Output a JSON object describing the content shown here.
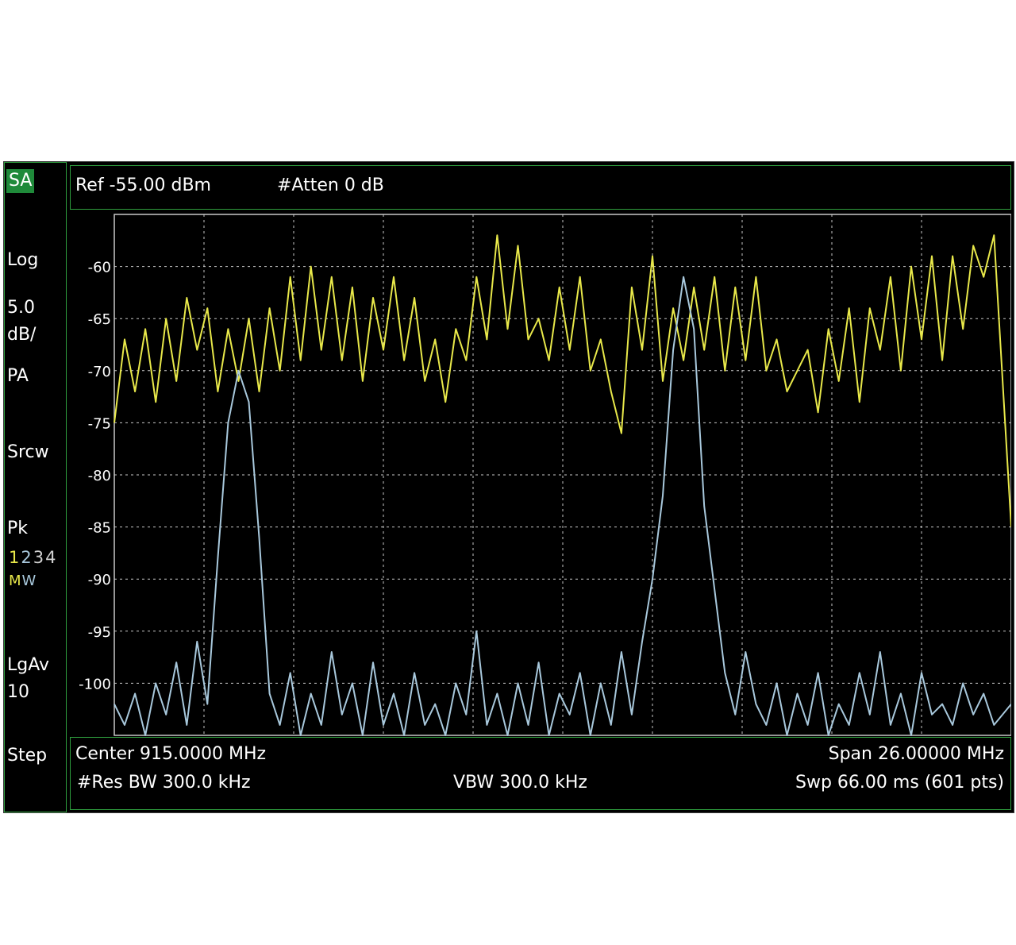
{
  "left_panel": {
    "mode_badge": "SA",
    "scale_type": "Log",
    "scale_value": "5.0",
    "scale_unit": "dB/",
    "preamp": "PA",
    "sweep_mode": "Srcw",
    "detector": "Pk",
    "traces": [
      "1",
      "2",
      "3",
      "4"
    ],
    "trace_modes": [
      "M",
      "W"
    ],
    "average_type": "LgAv",
    "average_count": "10",
    "step_label": "Step"
  },
  "header": {
    "ref_level": "Ref -55.00 dBm",
    "attenuation": "#Atten 0 dB"
  },
  "footer": {
    "center": "Center 915.0000 MHz",
    "span": "Span 26.00000 MHz",
    "res_bw": "#Res BW 300.0 kHz",
    "vbw": "VBW 300.0 kHz",
    "sweep": "Swp 66.00 ms (601 pts)"
  },
  "colors": {
    "background": "#000000",
    "grid": "#c8c8c8",
    "frame": "#2e9e3e",
    "trace1": "#e8e84a",
    "trace2": "#a8c8dc"
  },
  "chart_data": {
    "type": "line",
    "title": "",
    "xlabel": "",
    "ylabel": "",
    "x_unit": "MHz",
    "xlim": [
      902.0,
      928.0
    ],
    "ylim": [
      -105,
      -55
    ],
    "y_ticks": [
      -60,
      -65,
      -70,
      -75,
      -80,
      -85,
      -90,
      -95,
      -100
    ],
    "y_tick_labels": [
      "-60",
      "-65",
      "-70",
      "-75",
      "-80",
      "-85",
      "-90",
      "-95",
      "-100"
    ],
    "grid": true,
    "series": [
      {
        "trace": "1",
        "color": "#e8e84a",
        "x": [
          902.0,
          902.3,
          902.6,
          902.9,
          903.2,
          903.5,
          903.8,
          904.1,
          904.4,
          904.7,
          905.0,
          905.3,
          905.6,
          905.9,
          906.2,
          906.5,
          906.8,
          907.1,
          907.4,
          907.7,
          908.0,
          908.3,
          908.6,
          908.9,
          909.2,
          909.5,
          909.8,
          910.1,
          910.4,
          910.7,
          911.0,
          911.3,
          911.6,
          911.9,
          912.2,
          912.5,
          912.8,
          913.1,
          913.4,
          913.7,
          914.0,
          914.3,
          914.6,
          914.9,
          915.2,
          915.5,
          915.8,
          916.1,
          916.4,
          916.7,
          917.0,
          917.3,
          917.6,
          917.9,
          918.2,
          918.5,
          918.8,
          919.1,
          919.4,
          919.7,
          920.0,
          920.3,
          920.6,
          920.9,
          921.2,
          921.5,
          921.8,
          922.1,
          922.4,
          922.7,
          923.0,
          923.3,
          923.6,
          923.9,
          924.2,
          924.5,
          924.8,
          925.1,
          925.4,
          925.7,
          926.0,
          926.3,
          926.6,
          926.9,
          927.2,
          927.5,
          928.0
        ],
        "y": [
          -75,
          -67,
          -72,
          -66,
          -73,
          -65,
          -71,
          -63,
          -68,
          -64,
          -72,
          -66,
          -71,
          -65,
          -72,
          -64,
          -70,
          -61,
          -69,
          -60,
          -68,
          -61,
          -69,
          -62,
          -71,
          -63,
          -68,
          -61,
          -69,
          -63,
          -71,
          -67,
          -73,
          -66,
          -69,
          -61,
          -67,
          -57,
          -66,
          -58,
          -67,
          -65,
          -69,
          -62,
          -68,
          -61,
          -70,
          -67,
          -72,
          -76,
          -62,
          -68,
          -59,
          -71,
          -64,
          -69,
          -62,
          -68,
          -61,
          -70,
          -62,
          -69,
          -61,
          -70,
          -67,
          -72,
          -70,
          -68,
          -74,
          -66,
          -71,
          -64,
          -73,
          -64,
          -68,
          -61,
          -70,
          -60,
          -67,
          -59,
          -69,
          -59,
          -66,
          -58,
          -61,
          -57,
          -85
        ]
      },
      {
        "trace": "2",
        "color": "#a8c8dc",
        "x": [
          902.0,
          902.3,
          902.6,
          902.9,
          903.2,
          903.5,
          903.8,
          904.1,
          904.4,
          904.7,
          905.0,
          905.3,
          905.6,
          905.9,
          906.2,
          906.5,
          906.8,
          907.1,
          907.4,
          907.7,
          908.0,
          908.3,
          908.6,
          908.9,
          909.2,
          909.5,
          909.8,
          910.1,
          910.4,
          910.7,
          911.0,
          911.3,
          911.6,
          911.9,
          912.2,
          912.5,
          912.8,
          913.1,
          913.4,
          913.7,
          914.0,
          914.3,
          914.6,
          914.9,
          915.2,
          915.5,
          915.8,
          916.1,
          916.4,
          916.7,
          917.0,
          917.3,
          917.6,
          917.9,
          918.2,
          918.5,
          918.8,
          919.1,
          919.4,
          919.7,
          920.0,
          920.3,
          920.6,
          920.9,
          921.2,
          921.5,
          921.8,
          922.1,
          922.4,
          922.7,
          923.0,
          923.3,
          923.6,
          923.9,
          924.2,
          924.5,
          924.8,
          925.1,
          925.4,
          925.7,
          926.0,
          926.3,
          926.6,
          926.9,
          927.2,
          927.5,
          928.0
        ],
        "y": [
          -102,
          -104,
          -101,
          -105,
          -100,
          -103,
          -98,
          -104,
          -96,
          -102,
          -88,
          -75,
          -70,
          -73,
          -86,
          -101,
          -104,
          -99,
          -105,
          -101,
          -104,
          -97,
          -103,
          -100,
          -105,
          -98,
          -104,
          -101,
          -105,
          -99,
          -104,
          -102,
          -105,
          -100,
          -103,
          -95,
          -104,
          -101,
          -105,
          -100,
          -104,
          -98,
          -105,
          -101,
          -103,
          -99,
          -105,
          -100,
          -104,
          -97,
          -103,
          -96,
          -90,
          -82,
          -68,
          -61,
          -66,
          -83,
          -91,
          -99,
          -103,
          -97,
          -102,
          -104,
          -100,
          -105,
          -101,
          -104,
          -99,
          -105,
          -102,
          -104,
          -99,
          -103,
          -97,
          -104,
          -101,
          -105,
          -99,
          -103,
          -102,
          -104,
          -100,
          -103,
          -101,
          -104,
          -102
        ]
      }
    ]
  }
}
